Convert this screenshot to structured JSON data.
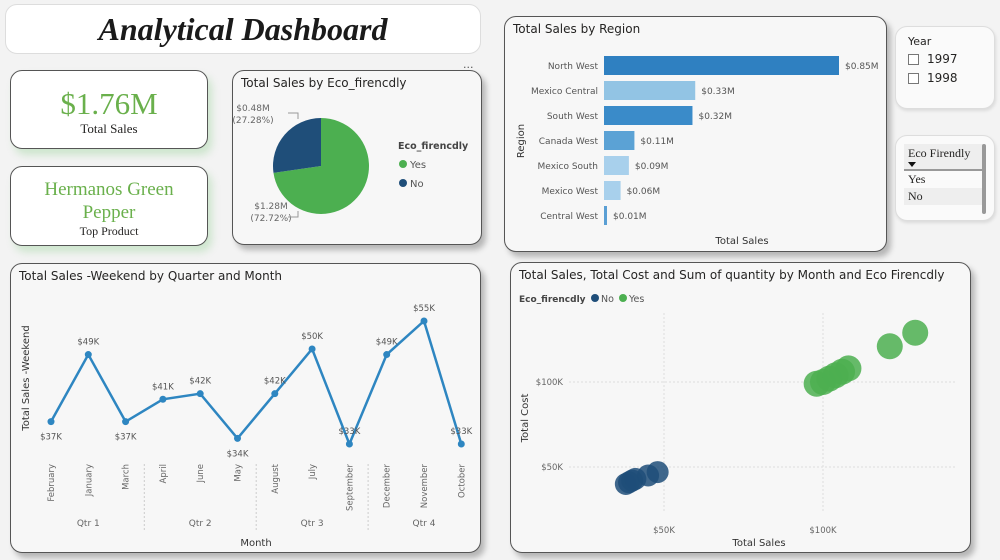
{
  "header": {
    "title": "Analytical Dashboard"
  },
  "kpis": {
    "total_sales_value": "$1.76M",
    "total_sales_label": "Total Sales",
    "top_product_value": "Hermanos Green Pepper",
    "top_product_label": "Top Product"
  },
  "more_options": "...",
  "slicers": {
    "year": {
      "title": "Year",
      "options": [
        "1997",
        "1998"
      ]
    },
    "eco": {
      "title": "Eco Firendly",
      "options": [
        "Yes",
        "No"
      ]
    }
  },
  "colors": {
    "yes": "#4caf50",
    "no": "#1f4e79",
    "line": "#2e86c1",
    "accent_green": "#6ab04c"
  },
  "chart_data": [
    {
      "type": "pie",
      "title": "Total Sales by Eco_firencdly",
      "legend_title": "Eco_firencdly",
      "legend_placement": "right",
      "categories": [
        "Yes",
        "No"
      ],
      "values": [
        1.28,
        0.48
      ],
      "percents": [
        72.72,
        27.28
      ],
      "labels": [
        "$1.28M\n(72.72%)",
        "$0.48M\n(27.28%)"
      ],
      "legend": [
        "Yes",
        "No"
      ],
      "colors": [
        "#4caf50",
        "#1f4e79"
      ]
    },
    {
      "type": "bar",
      "orientation": "horizontal",
      "title": "Total Sales by Region",
      "xlabel": "Total Sales",
      "ylabel": "Region",
      "categories": [
        "North West",
        "Mexico Central",
        "South West",
        "Canada West",
        "Mexico South",
        "Mexico West",
        "Central West"
      ],
      "values": [
        0.85,
        0.33,
        0.32,
        0.11,
        0.09,
        0.06,
        0.01
      ],
      "labels": [
        "$0.85M",
        "$0.33M",
        "$0.32M",
        "$0.11M",
        "$0.09M",
        "$0.06M",
        "$0.01M"
      ],
      "colors": [
        "#2f80c1",
        "#92c4e4",
        "#3a8bc9",
        "#5ba2d5",
        "#a8d0ec",
        "#a8d0ec",
        "#5a9fd4"
      ],
      "xlim": [
        0,
        0.85
      ]
    },
    {
      "type": "line",
      "title": "Total Sales -Weekend by Quarter and Month",
      "xlabel": "Month",
      "ylabel": "Total Sales -Weekend",
      "categories": [
        "February",
        "January",
        "March",
        "April",
        "June",
        "May",
        "August",
        "July",
        "September",
        "December",
        "November",
        "October"
      ],
      "groups": [
        {
          "label": "Qtr 1",
          "count": 3
        },
        {
          "label": "Qtr 2",
          "count": 3
        },
        {
          "label": "Qtr 3",
          "count": 3
        },
        {
          "label": "Qtr 4",
          "count": 3
        }
      ],
      "values": [
        37,
        49,
        37,
        41,
        42,
        34,
        42,
        50,
        33,
        49,
        55,
        33
      ],
      "labels": [
        "$37K",
        "$49K",
        "$37K",
        "$41K",
        "$42K",
        "$34K",
        "$42K",
        "$50K",
        "$33K",
        "$49K",
        "$55K",
        "$33K"
      ],
      "ylim": [
        33,
        55
      ]
    },
    {
      "type": "scatter",
      "title": "Total Sales, Total Cost and Sum of quantity by Month and Eco Firencdly",
      "xlabel": "Total Sales",
      "ylabel": "Total Cost",
      "legend_title": "Eco_firencdly",
      "legend_placement": "top-left",
      "grid": true,
      "xticks": [
        "$50K",
        "$100K"
      ],
      "xtick_values": [
        50,
        100
      ],
      "yticks": [
        "$100K",
        "$50K"
      ],
      "ytick_values": [
        100,
        50
      ],
      "xlim": [
        22,
        135
      ],
      "ylim": [
        27,
        135
      ],
      "series": [
        {
          "name": "No",
          "color": "#1f4e79",
          "points": [
            [
              38,
              40
            ],
            [
              39,
              41
            ],
            [
              40,
              42
            ],
            [
              41,
              43
            ],
            [
              45,
              45
            ],
            [
              48,
              47
            ]
          ]
        },
        {
          "name": "Yes",
          "color": "#4caf50",
          "points": [
            [
              98,
              99
            ],
            [
              100,
              100
            ],
            [
              102,
              102
            ],
            [
              104,
              104
            ],
            [
              106,
              106
            ],
            [
              108,
              108
            ],
            [
              121,
              121
            ],
            [
              129,
              129
            ]
          ]
        }
      ]
    }
  ]
}
